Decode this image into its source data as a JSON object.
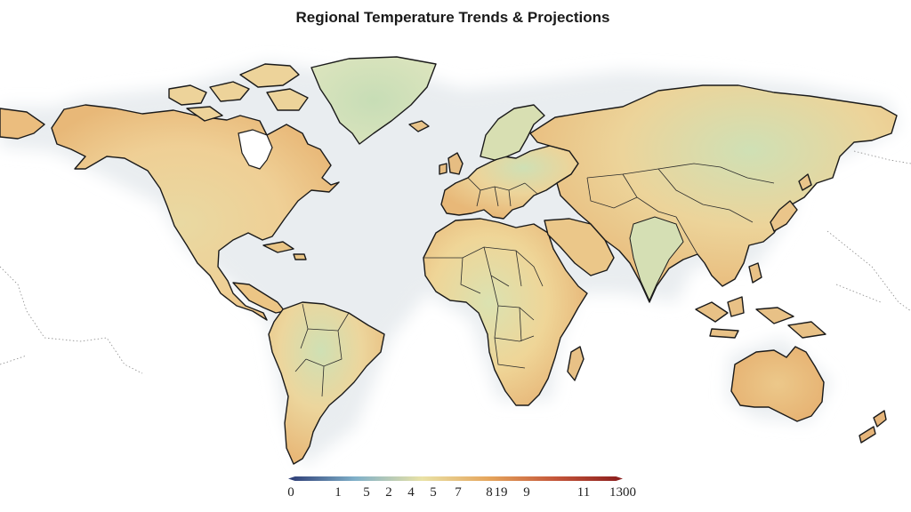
{
  "title": "Regional Temperature Trends & Projections",
  "colors": {
    "land_warm": "#eab87a",
    "land_mid": "#f1d99a",
    "land_cool": "#cfe0b5",
    "land_green": "#c3dbb4",
    "ocean_glow": "#eef1f3",
    "outline": "#1a1a1a"
  },
  "legend": {
    "gradient": [
      "#2b3a74",
      "#7fb0c9",
      "#e9e2a6",
      "#e5a55c",
      "#c4563a",
      "#8a1c1c"
    ],
    "ticks": [
      "0",
      "1",
      "5",
      "2",
      "4",
      "5",
      "7",
      "8",
      "19",
      "9",
      "11",
      "1300"
    ]
  }
}
